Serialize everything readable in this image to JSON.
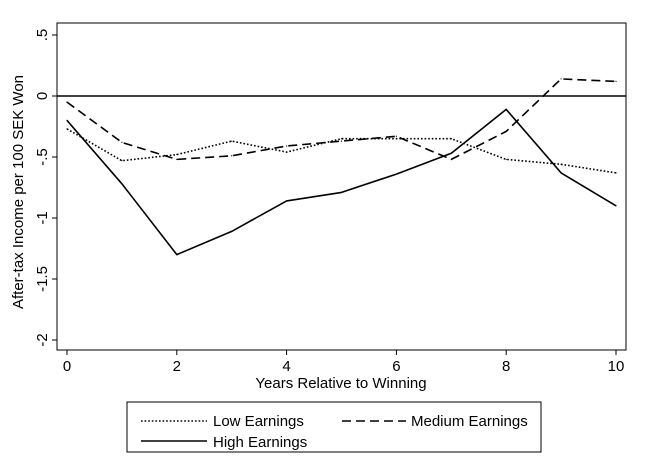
{
  "chart_data": {
    "type": "line",
    "xlabel": "Years Relative to Winning",
    "ylabel": "After-tax Income per 100 SEK Won",
    "xlim": [
      0,
      10
    ],
    "ylim": [
      -2,
      0.5
    ],
    "x_ticks": [
      0,
      2,
      4,
      6,
      8,
      10
    ],
    "x_tick_labels": [
      "0",
      "2",
      "4",
      "6",
      "8",
      "10"
    ],
    "y_ticks": [
      -2,
      -1.5,
      -1,
      -0.5,
      0,
      0.5
    ],
    "y_tick_labels": [
      "-2",
      "-1.5",
      "-1",
      "-.5",
      "0",
      ".5"
    ],
    "reference_line": 0,
    "grid": false,
    "legend_position": "bottom",
    "x": [
      0,
      1,
      2,
      3,
      4,
      5,
      6,
      7,
      8,
      9,
      10
    ],
    "series": [
      {
        "name": "Low Earnings",
        "style": "dotted",
        "values": [
          -0.27,
          -0.53,
          -0.48,
          -0.37,
          -0.46,
          -0.35,
          -0.35,
          -0.35,
          -0.52,
          -0.56,
          -0.63
        ]
      },
      {
        "name": "Medium Earnings",
        "style": "dashed",
        "values": [
          -0.05,
          -0.38,
          -0.52,
          -0.49,
          -0.41,
          -0.37,
          -0.33,
          -0.52,
          -0.29,
          0.14,
          0.12
        ]
      },
      {
        "name": "High Earnings",
        "style": "solid",
        "values": [
          -0.2,
          -0.72,
          -1.3,
          -1.11,
          -0.86,
          -0.79,
          -0.64,
          -0.47,
          -0.11,
          -0.63,
          -0.9
        ]
      }
    ],
    "colors": {
      "line": "#000000",
      "background": "#ffffff"
    }
  }
}
